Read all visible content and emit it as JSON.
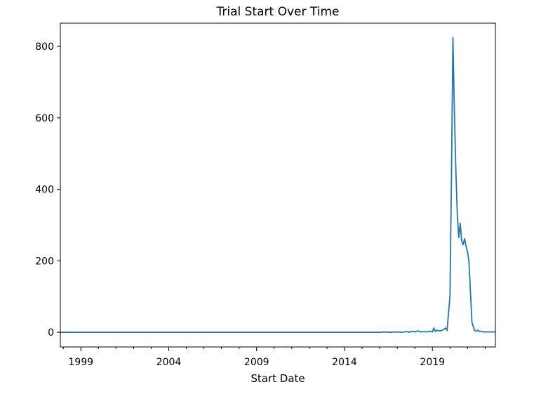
{
  "chart_data": {
    "type": "line",
    "title": "Trial Start Over Time",
    "xlabel": "Start Date",
    "ylabel": "",
    "x_tick_labels": [
      "1999",
      "2004",
      "2009",
      "2014",
      "2019"
    ],
    "x_tick_values": [
      "1999-01",
      "2004-01",
      "2009-01",
      "2014-01",
      "2019-01"
    ],
    "y_ticks": [
      0,
      200,
      400,
      600,
      800
    ],
    "xlim": [
      "1997-11",
      "2022-08"
    ],
    "ylim": [
      -41,
      865
    ],
    "grid": false,
    "line_color": "#1f77b4",
    "series": [
      {
        "points": [
          [
            "1997-11",
            0
          ],
          [
            "2016-01",
            0
          ],
          [
            "2016-04",
            1
          ],
          [
            "2016-08",
            0
          ],
          [
            "2017-01",
            1
          ],
          [
            "2017-04",
            0
          ],
          [
            "2017-07",
            2
          ],
          [
            "2017-09",
            0
          ],
          [
            "2017-11",
            3
          ],
          [
            "2018-01",
            1
          ],
          [
            "2018-03",
            4
          ],
          [
            "2018-05",
            1
          ],
          [
            "2018-07",
            2
          ],
          [
            "2018-09",
            1
          ],
          [
            "2018-11",
            3
          ],
          [
            "2019-01",
            1
          ],
          [
            "2019-02",
            12
          ],
          [
            "2019-03",
            2
          ],
          [
            "2019-04",
            6
          ],
          [
            "2019-06",
            4
          ],
          [
            "2019-08",
            6
          ],
          [
            "2019-10",
            12
          ],
          [
            "2019-11",
            5
          ],
          [
            "2020-01",
            100
          ],
          [
            "2020-02",
            430
          ],
          [
            "2020-03",
            825
          ],
          [
            "2020-04",
            620
          ],
          [
            "2020-05",
            455
          ],
          [
            "2020-06",
            330
          ],
          [
            "2020-07",
            265
          ],
          [
            "2020-08",
            305
          ],
          [
            "2020-09",
            255
          ],
          [
            "2020-10",
            245
          ],
          [
            "2020-11",
            262
          ],
          [
            "2020-12",
            240
          ],
          [
            "2021-01",
            225
          ],
          [
            "2021-02",
            195
          ],
          [
            "2021-03",
            110
          ],
          [
            "2021-04",
            28
          ],
          [
            "2021-05",
            15
          ],
          [
            "2021-06",
            4
          ],
          [
            "2021-07",
            3
          ],
          [
            "2021-08",
            6
          ],
          [
            "2021-09",
            2
          ],
          [
            "2021-10",
            3
          ],
          [
            "2021-12",
            1
          ],
          [
            "2022-08",
            1
          ]
        ]
      }
    ]
  }
}
